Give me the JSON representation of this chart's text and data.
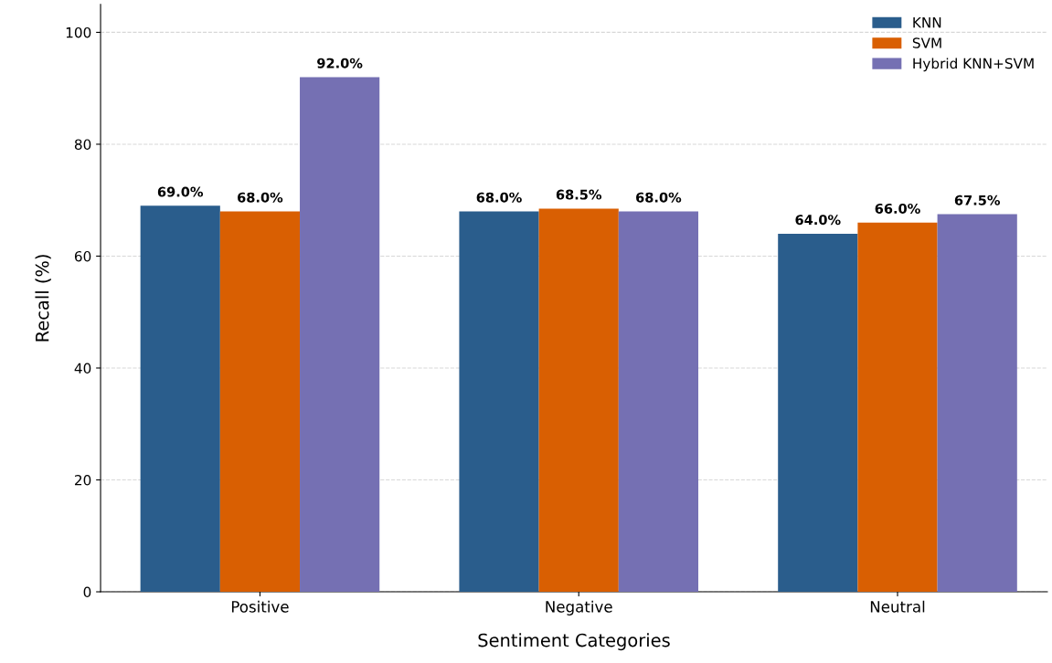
{
  "chart_data": {
    "type": "bar",
    "xlabel": "Sentiment Categories",
    "ylabel": "Recall (%)",
    "categories": [
      "Positive",
      "Negative",
      "Neutral"
    ],
    "series": [
      {
        "name": "KNN",
        "color": "#2a5d8c",
        "values": [
          69.0,
          68.0,
          64.0
        ],
        "value_labels": [
          "69.0%",
          "68.0%",
          "64.0%"
        ]
      },
      {
        "name": "SVM",
        "color": "#d95f02",
        "values": [
          68.0,
          68.5,
          66.0
        ],
        "value_labels": [
          "68.0%",
          "68.5%",
          "66.0%"
        ]
      },
      {
        "name": "Hybrid KNN+SVM",
        "color": "#7570b3",
        "values": [
          92.0,
          68.0,
          67.5
        ],
        "value_labels": [
          "92.0%",
          "68.0%",
          "67.5%"
        ]
      }
    ],
    "ylim": [
      0,
      105
    ],
    "yticks": [
      0,
      20,
      40,
      60,
      80,
      100
    ],
    "grid": "y",
    "legend": "top right"
  }
}
